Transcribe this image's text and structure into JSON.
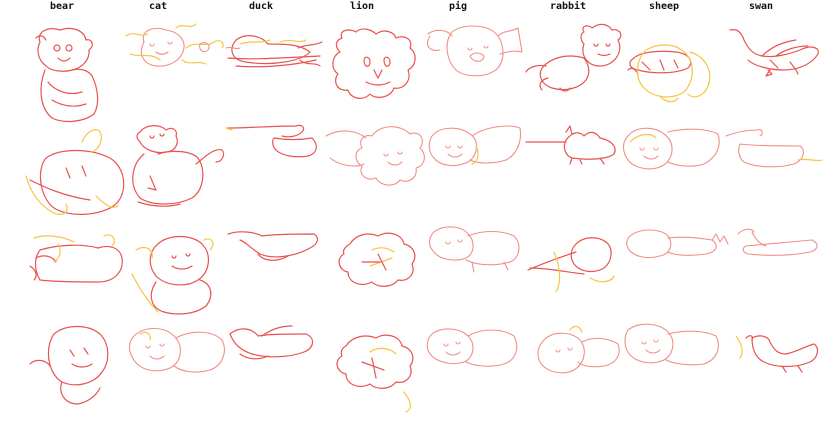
{
  "columns": [
    "bear",
    "cat",
    "duck",
    "lion",
    "pig",
    "rabbit",
    "sheep",
    "swan"
  ],
  "colors": {
    "primary_stroke": "#e8544f",
    "light_stroke": "#f08f87",
    "secondary_stroke": "#f7c544",
    "background": "#ffffff"
  }
}
